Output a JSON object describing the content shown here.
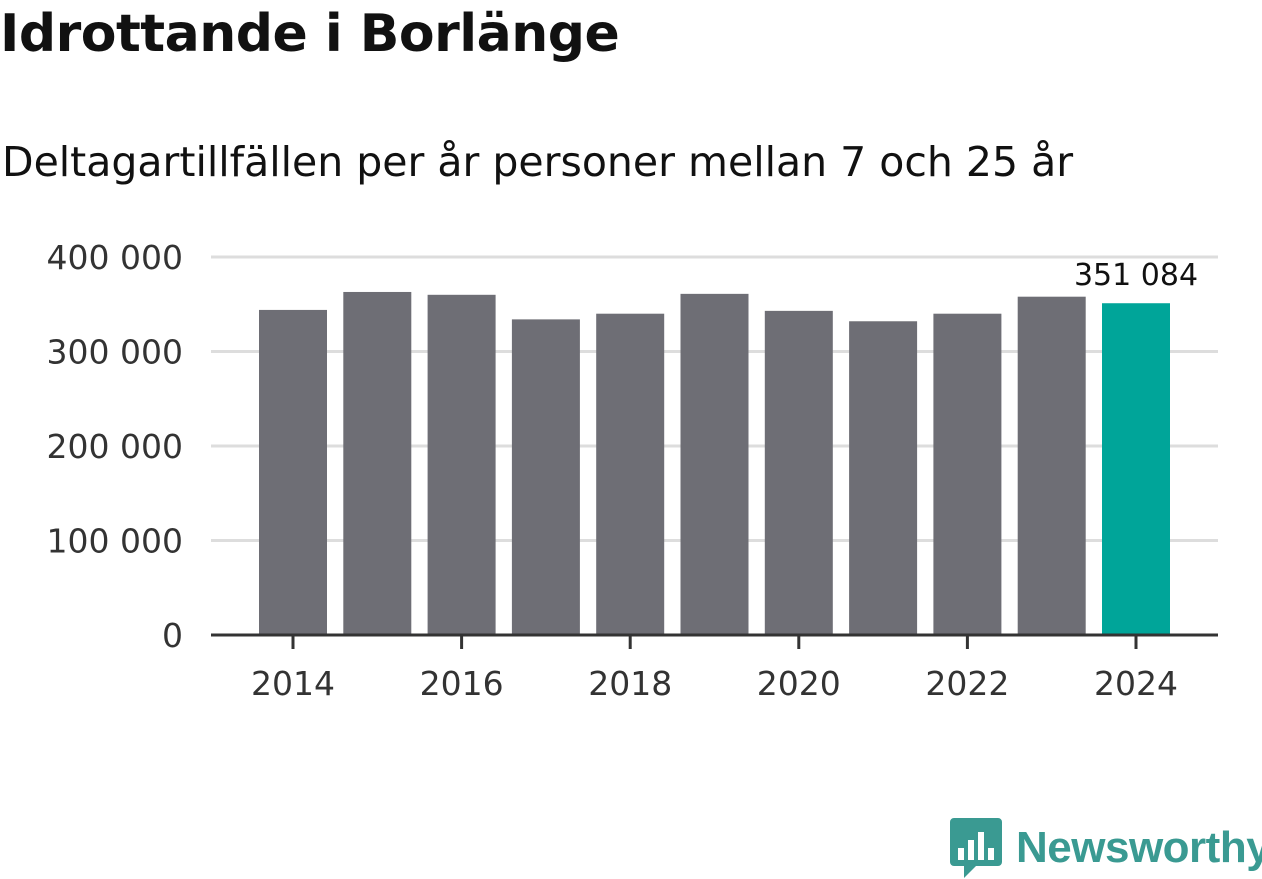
{
  "title": "Idrottande i Borlänge",
  "subtitle": "Deltagartillfällen per år personer mellan 7 och 25 år",
  "brand": "Newsworthy",
  "colors": {
    "bar": "#6e6e75",
    "highlight": "#00a599",
    "grid": "#dddddd",
    "axis": "#333333",
    "brand": "#3a9a92"
  },
  "chart_data": {
    "type": "bar",
    "x": [
      2014,
      2015,
      2016,
      2017,
      2018,
      2019,
      2020,
      2021,
      2022,
      2023,
      2024
    ],
    "values": [
      344000,
      363000,
      360000,
      334000,
      340000,
      361000,
      343000,
      332000,
      340000,
      358000,
      351084
    ],
    "highlight_index": 10,
    "data_labels": [
      {
        "index": 10,
        "text": "351 084"
      }
    ],
    "y_ticks": [
      0,
      100000,
      200000,
      300000,
      400000
    ],
    "y_tick_labels": [
      "0",
      "100 000",
      "200 000",
      "300 000",
      "400 000"
    ],
    "x_ticks": [
      2014,
      2016,
      2018,
      2020,
      2022,
      2024
    ],
    "x_tick_labels": [
      "2014",
      "2016",
      "2018",
      "2020",
      "2022",
      "2024"
    ],
    "ylim": [
      0,
      400000
    ],
    "xlabel": "",
    "ylabel": "",
    "grid": true
  }
}
